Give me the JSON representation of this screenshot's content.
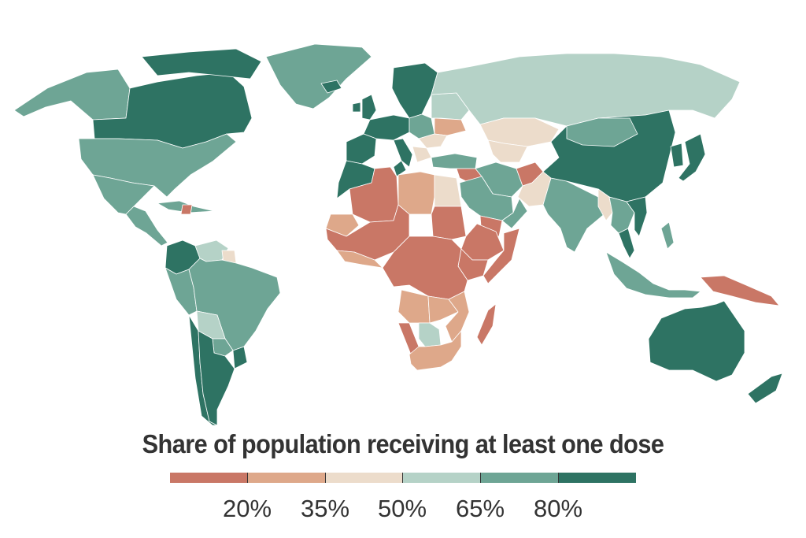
{
  "legend": {
    "title": "Share of population receiving at least one dose",
    "bins": [
      {
        "color": "#c97766"
      },
      {
        "color": "#dea88a"
      },
      {
        "color": "#ecdccb"
      },
      {
        "color": "#b5d2c7"
      },
      {
        "color": "#6ea595"
      },
      {
        "color": "#2e7363"
      }
    ],
    "tick_labels": [
      "20%",
      "35%",
      "50%",
      "65%",
      "80%"
    ]
  },
  "regions": [
    {
      "name": "Alaska & Western Canada",
      "bin": 4
    },
    {
      "name": "Canada",
      "bin": 5
    },
    {
      "name": "Canadian Arctic Islands",
      "bin": 5
    },
    {
      "name": "Greenland",
      "bin": 4
    },
    {
      "name": "United States",
      "bin": 4
    },
    {
      "name": "Mexico",
      "bin": 4
    },
    {
      "name": "Central America",
      "bin": 4
    },
    {
      "name": "Caribbean",
      "bin": 4
    },
    {
      "name": "Haiti",
      "bin": 0
    },
    {
      "name": "Colombia",
      "bin": 5
    },
    {
      "name": "Venezuela",
      "bin": 3
    },
    {
      "name": "Guyana",
      "bin": 2
    },
    {
      "name": "Peru",
      "bin": 4
    },
    {
      "name": "Brazil",
      "bin": 4
    },
    {
      "name": "Bolivia",
      "bin": 3
    },
    {
      "name": "Paraguay",
      "bin": 4
    },
    {
      "name": "Chile",
      "bin": 5
    },
    {
      "name": "Argentina",
      "bin": 5
    },
    {
      "name": "Uruguay",
      "bin": 5
    },
    {
      "name": "Iceland",
      "bin": 5
    },
    {
      "name": "Scandinavia",
      "bin": 5
    },
    {
      "name": "United Kingdom",
      "bin": 5
    },
    {
      "name": "Ireland",
      "bin": 5
    },
    {
      "name": "Western Europe",
      "bin": 5
    },
    {
      "name": "Iberia",
      "bin": 5
    },
    {
      "name": "Italy",
      "bin": 5
    },
    {
      "name": "Central Europe",
      "bin": 4
    },
    {
      "name": "Eastern Europe",
      "bin": 3
    },
    {
      "name": "Ukraine",
      "bin": 1
    },
    {
      "name": "Romania",
      "bin": 2
    },
    {
      "name": "Balkans",
      "bin": 2
    },
    {
      "name": "Russia",
      "bin": 3
    },
    {
      "name": "Kazakhstan",
      "bin": 2
    },
    {
      "name": "Central Asia",
      "bin": 2
    },
    {
      "name": "Turkey",
      "bin": 4
    },
    {
      "name": "Syria & Iraq",
      "bin": 0
    },
    {
      "name": "Iran",
      "bin": 4
    },
    {
      "name": "Afghanistan",
      "bin": 0
    },
    {
      "name": "Pakistan",
      "bin": 2
    },
    {
      "name": "Saudi Arabia",
      "bin": 4
    },
    {
      "name": "Yemen",
      "bin": 0
    },
    {
      "name": "Oman",
      "bin": 4
    },
    {
      "name": "India",
      "bin": 4
    },
    {
      "name": "China",
      "bin": 5
    },
    {
      "name": "Mongolia",
      "bin": 4
    },
    {
      "name": "Korea",
      "bin": 5
    },
    {
      "name": "Japan",
      "bin": 5
    },
    {
      "name": "Myanmar",
      "bin": 2
    },
    {
      "name": "Mainland Southeast Asia",
      "bin": 4
    },
    {
      "name": "Vietnam",
      "bin": 5
    },
    {
      "name": "Malaysia",
      "bin": 5
    },
    {
      "name": "Philippines",
      "bin": 4
    },
    {
      "name": "Indonesia",
      "bin": 4
    },
    {
      "name": "Papua New Guinea",
      "bin": 0
    },
    {
      "name": "Australia",
      "bin": 5
    },
    {
      "name": "New Zealand",
      "bin": 5
    },
    {
      "name": "Morocco",
      "bin": 5
    },
    {
      "name": "Tunisia",
      "bin": 5
    },
    {
      "name": "Algeria",
      "bin": 0
    },
    {
      "name": "Libya",
      "bin": 1
    },
    {
      "name": "Egypt",
      "bin": 2
    },
    {
      "name": "Mauritania",
      "bin": 1
    },
    {
      "name": "West Africa",
      "bin": 0
    },
    {
      "name": "Guinea Coast",
      "bin": 1
    },
    {
      "name": "Sudan",
      "bin": 0
    },
    {
      "name": "Ethiopia",
      "bin": 0
    },
    {
      "name": "Somalia",
      "bin": 0
    },
    {
      "name": "Kenya",
      "bin": 0
    },
    {
      "name": "Central Africa",
      "bin": 0
    },
    {
      "name": "Angola",
      "bin": 1
    },
    {
      "name": "Namibia",
      "bin": 0
    },
    {
      "name": "Botswana",
      "bin": 3
    },
    {
      "name": "Zambia",
      "bin": 1
    },
    {
      "name": "Mozambique",
      "bin": 1
    },
    {
      "name": "South Africa",
      "bin": 1
    },
    {
      "name": "Madagascar",
      "bin": 0
    }
  ]
}
